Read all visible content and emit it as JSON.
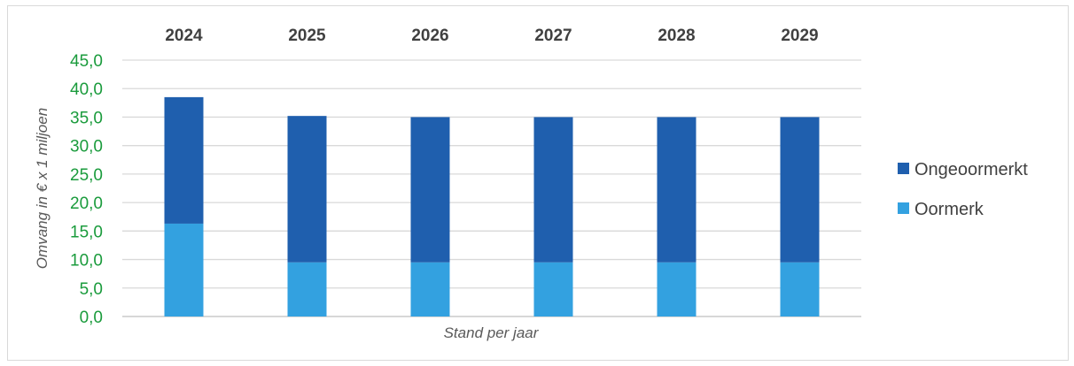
{
  "chart_data": {
    "type": "bar",
    "stacked": true,
    "categories": [
      "2024",
      "2025",
      "2026",
      "2027",
      "2028",
      "2029"
    ],
    "series": [
      {
        "name": "Oormerk",
        "values": [
          16.3,
          9.5,
          9.5,
          9.5,
          9.5,
          9.5
        ],
        "color": "#33a1e0"
      },
      {
        "name": "Ongeoormerkt",
        "values": [
          22.2,
          25.7,
          25.5,
          25.5,
          25.5,
          25.5
        ],
        "color": "#1f5fae"
      }
    ],
    "yticks": [
      "0,0",
      "5,0",
      "10,0",
      "15,0",
      "20,0",
      "25,0",
      "30,0",
      "35,0",
      "40,0",
      "45,0"
    ],
    "ylim": [
      0,
      45
    ],
    "xlabel": "Stand per jaar",
    "ylabel": "Omvang in € x 1 miljoen",
    "grid": true,
    "category_axis_position": "top",
    "legend_position": "right",
    "legend": [
      "Ongeoormerkt",
      "Oormerk"
    ]
  }
}
